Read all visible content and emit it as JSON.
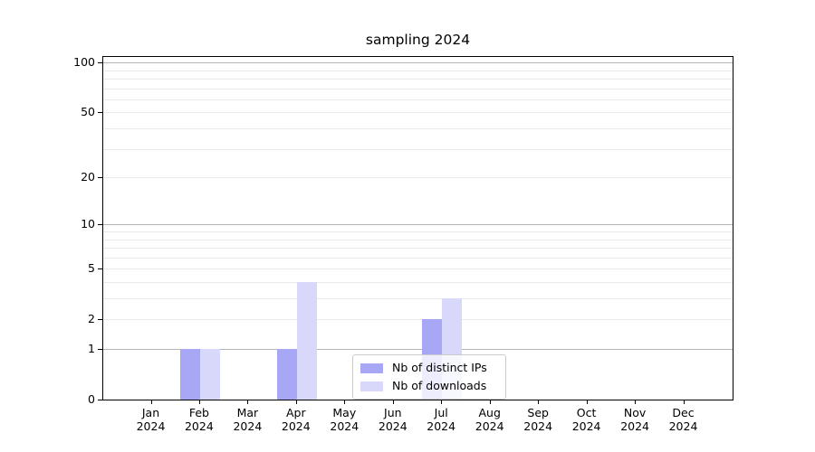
{
  "title": "sampling 2024",
  "colors": {
    "bar_distinct_ips": "#a7a7f5",
    "bar_downloads": "#d8d8fa",
    "grid_major": "#b4b4b4",
    "grid_minor": "#e9e9e9",
    "axis_line": "#000000",
    "legend_border": "#cbcbcb",
    "background": "#ffffff"
  },
  "chart_data": {
    "type": "bar",
    "title": "sampling 2024",
    "categories": [
      "Jan",
      "Feb",
      "Mar",
      "Apr",
      "May",
      "Jun",
      "Jul",
      "Aug",
      "Sep",
      "Oct",
      "Nov",
      "Dec"
    ],
    "category_year": "2024",
    "series": [
      {
        "name": "Nb of distinct IPs",
        "color": "#a7a7f5",
        "values": [
          0,
          1,
          0,
          1,
          0,
          0,
          2,
          0,
          0,
          0,
          0,
          0
        ]
      },
      {
        "name": "Nb of downloads",
        "color": "#d8d8fa",
        "values": [
          0,
          1,
          0,
          4,
          0,
          0,
          3,
          0,
          0,
          0,
          0,
          0
        ]
      }
    ],
    "xlabel": "",
    "ylabel": "",
    "yscale": "log1p",
    "ylim": [
      0,
      108
    ],
    "y_ticks": [
      0,
      1,
      2,
      5,
      10,
      20,
      50,
      100
    ],
    "grid": {
      "major": [
        1,
        10,
        100
      ],
      "minor": [
        2,
        3,
        4,
        5,
        6,
        7,
        8,
        9,
        20,
        30,
        40,
        50,
        60,
        70,
        80,
        90
      ]
    },
    "legend_position": "inside lower-center",
    "grid_on": true
  }
}
